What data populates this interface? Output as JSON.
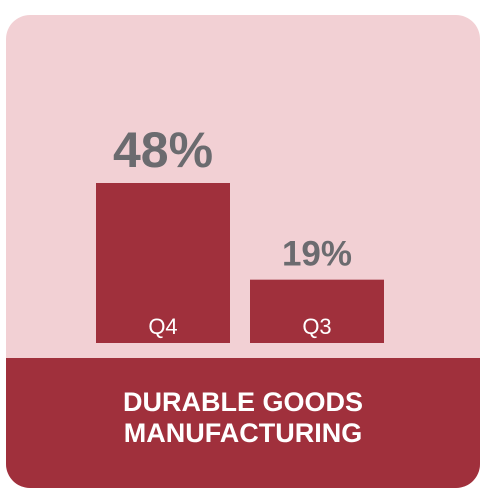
{
  "chart_data": {
    "type": "bar",
    "categories": [
      "Q4",
      "Q3"
    ],
    "values": [
      48,
      19
    ],
    "data_labels": [
      "48%",
      "19%"
    ],
    "unit": "%",
    "title": "DURABLE GOODS MANUFACTURING",
    "xlabel": "",
    "ylabel": "",
    "ylim": [
      0,
      48
    ],
    "grid": false,
    "legend": "none"
  },
  "colors": {
    "background": "#f2d0d4",
    "bar": "#a0303c",
    "footer": "#a0303c",
    "value_label": "#6b6b6f",
    "category_label": "#ffffff"
  }
}
